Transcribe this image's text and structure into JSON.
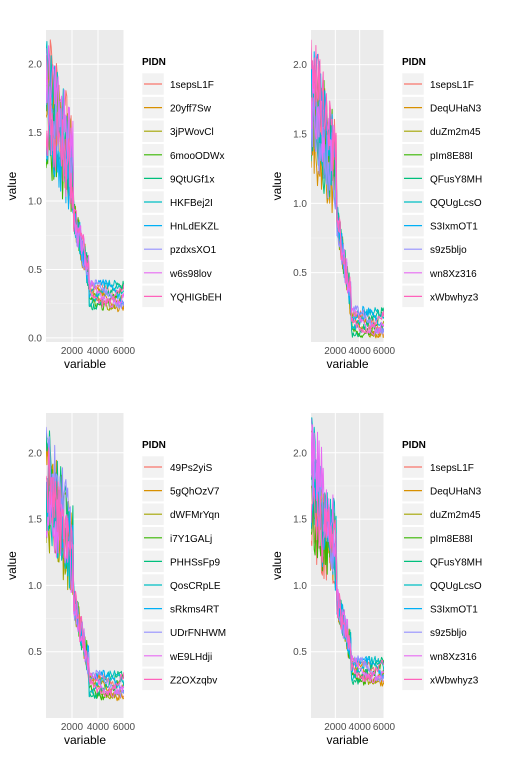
{
  "chart_data": [
    {
      "type": "line",
      "xlabel": "variable",
      "ylabel": "value",
      "legend_title": "PIDN",
      "legend_position": "right",
      "x_ticks": [
        "2000",
        "4000",
        "6000"
      ],
      "y_ticks": [
        "0.0",
        "0.5",
        "1.0",
        "1.5",
        "2.0"
      ],
      "ylim": [
        -0.03,
        2.25
      ],
      "xlim": [
        1,
        6000
      ],
      "grid": true,
      "series": [
        {
          "name": "1sepsL1F",
          "color": "#F8766D"
        },
        {
          "name": "20yff7Sw",
          "color": "#D89000"
        },
        {
          "name": "3jPWovCl",
          "color": "#A3A500"
        },
        {
          "name": "6mooODWx",
          "color": "#39B600"
        },
        {
          "name": "9QtUGf1x",
          "color": "#00BF7D"
        },
        {
          "name": "HKFBej2I",
          "color": "#00BFC4"
        },
        {
          "name": "HnLdEKZL",
          "color": "#00B0F6"
        },
        {
          "name": "pzdxsXO1",
          "color": "#9590FF"
        },
        {
          "name": "w6s98lov",
          "color": "#E76BF3"
        },
        {
          "name": "YQHIGbEH",
          "color": "#FF62BC"
        }
      ]
    },
    {
      "type": "line",
      "xlabel": "variable",
      "ylabel": "value",
      "legend_title": "PIDN",
      "legend_position": "right",
      "x_ticks": [
        "2000",
        "4000",
        "6000"
      ],
      "y_ticks": [
        "0.5",
        "1.0",
        "1.5",
        "2.0"
      ],
      "ylim": [
        0.0,
        2.25
      ],
      "xlim": [
        1,
        6000
      ],
      "grid": true,
      "series": [
        {
          "name": "1sepsL1F",
          "color": "#F8766D"
        },
        {
          "name": "DeqUHaN3",
          "color": "#D89000"
        },
        {
          "name": "duZm2m45",
          "color": "#A3A500"
        },
        {
          "name": "pIm8E88I",
          "color": "#39B600"
        },
        {
          "name": "QFusY8MH",
          "color": "#00BF7D"
        },
        {
          "name": "QQUgLcsO",
          "color": "#00BFC4"
        },
        {
          "name": "S3IxmOT1",
          "color": "#00B0F6"
        },
        {
          "name": "s9z5bljo",
          "color": "#9590FF"
        },
        {
          "name": "wn8Xz316",
          "color": "#E76BF3"
        },
        {
          "name": "xWbwhyz3",
          "color": "#FF62BC"
        }
      ]
    },
    {
      "type": "line",
      "xlabel": "variable",
      "ylabel": "value",
      "legend_title": "PIDN",
      "legend_position": "right",
      "x_ticks": [
        "2000",
        "4000",
        "6000"
      ],
      "y_ticks": [
        "0.5",
        "1.0",
        "1.5",
        "2.0"
      ],
      "ylim": [
        0.0,
        2.3
      ],
      "xlim": [
        1,
        6000
      ],
      "grid": true,
      "series": [
        {
          "name": "49Ps2yiS",
          "color": "#F8766D"
        },
        {
          "name": "5gQhOzV7",
          "color": "#D89000"
        },
        {
          "name": "dWFMrYqn",
          "color": "#A3A500"
        },
        {
          "name": "i7Y1GALj",
          "color": "#39B600"
        },
        {
          "name": "PHHSsFp9",
          "color": "#00BF7D"
        },
        {
          "name": "QosCRpLE",
          "color": "#00BFC4"
        },
        {
          "name": "sRkms4RT",
          "color": "#00B0F6"
        },
        {
          "name": "UDrFNHWM",
          "color": "#9590FF"
        },
        {
          "name": "wE9LHdji",
          "color": "#E76BF3"
        },
        {
          "name": "Z2OXzqbv",
          "color": "#FF62BC"
        }
      ]
    },
    {
      "type": "line",
      "xlabel": "variable",
      "ylabel": "value",
      "legend_title": "PIDN",
      "legend_position": "right",
      "x_ticks": [
        "2000",
        "4000",
        "6000"
      ],
      "y_ticks": [
        "0.5",
        "1.0",
        "1.5",
        "2.0"
      ],
      "ylim": [
        0.0,
        2.3
      ],
      "xlim": [
        1,
        6000
      ],
      "grid": true,
      "series": [
        {
          "name": "1sepsL1F",
          "color": "#F8766D"
        },
        {
          "name": "DeqUHaN3",
          "color": "#D89000"
        },
        {
          "name": "duZm2m45",
          "color": "#A3A500"
        },
        {
          "name": "pIm8E88I",
          "color": "#39B600"
        },
        {
          "name": "QFusY8MH",
          "color": "#00BF7D"
        },
        {
          "name": "QQUgLcsO",
          "color": "#00BFC4"
        },
        {
          "name": "S3IxmOT1",
          "color": "#00B0F6"
        },
        {
          "name": "s9z5bljo",
          "color": "#9590FF"
        },
        {
          "name": "wn8Xz316",
          "color": "#E76BF3"
        },
        {
          "name": "xWbwhyz3",
          "color": "#FF62BC"
        }
      ]
    }
  ]
}
